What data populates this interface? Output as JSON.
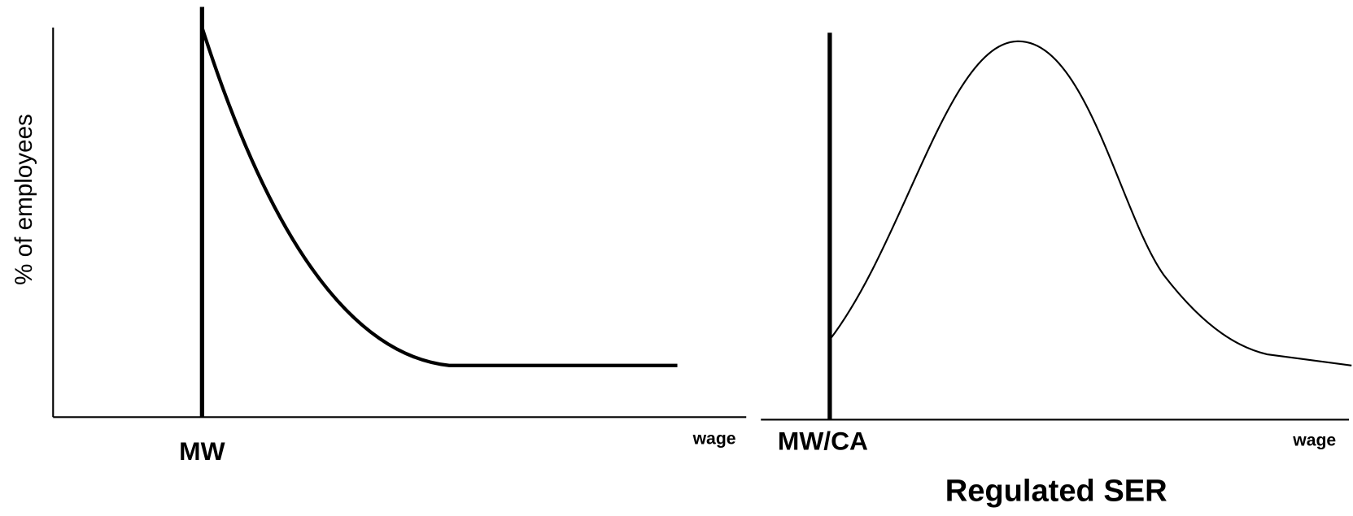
{
  "left_panel": {
    "y_axis_label": "% of employees",
    "vertical_line_label": "MW",
    "x_axis_label": "wage"
  },
  "right_panel": {
    "vertical_line_label": "MW/CA",
    "x_axis_label": "wage",
    "title": "Regulated SER"
  }
}
